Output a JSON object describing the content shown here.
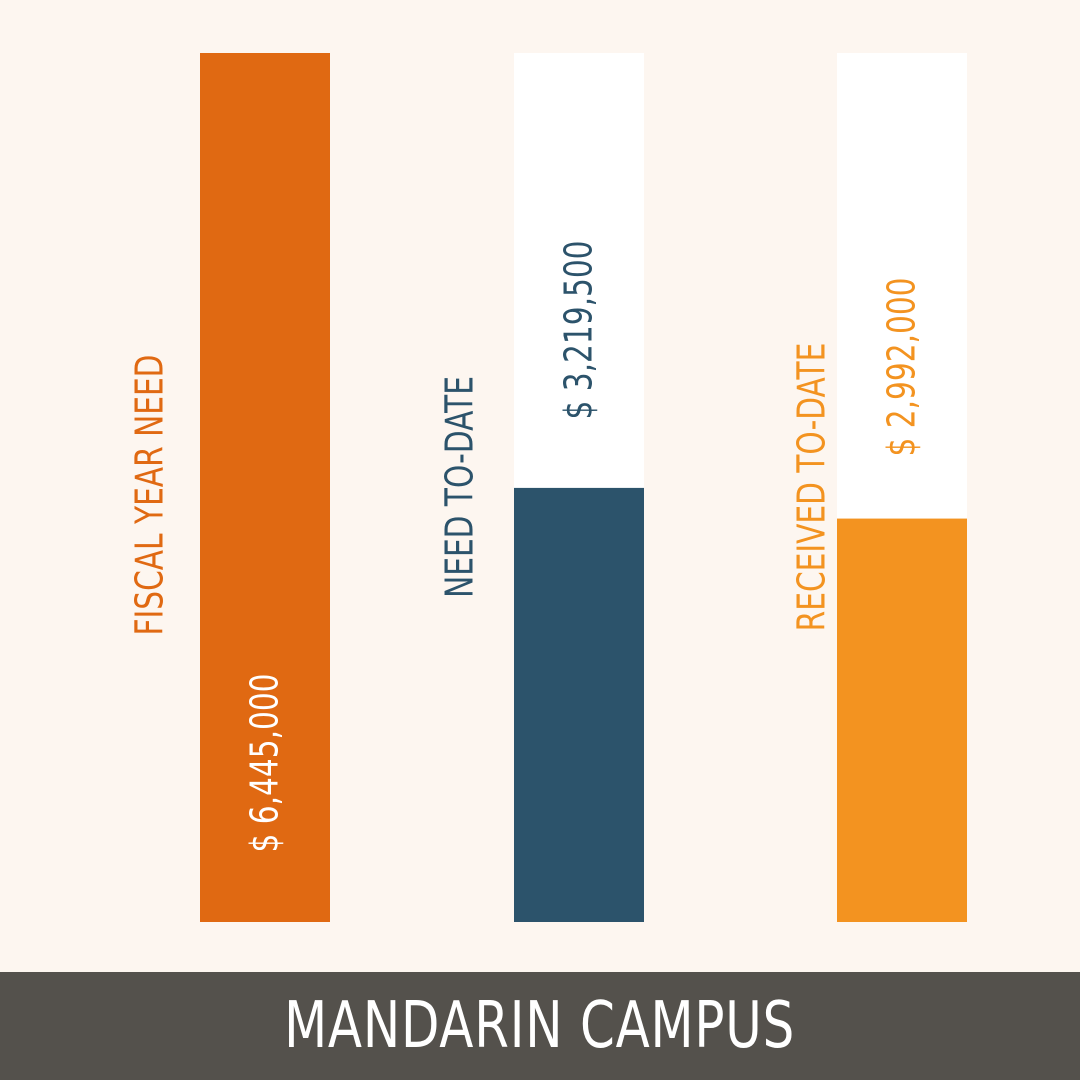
{
  "chart_data": {
    "type": "bar",
    "orientation": "vertical",
    "ylim": [
      0,
      6445000
    ],
    "grid": false,
    "legend": "none",
    "series": [
      {
        "category": "FISCAL YEAR NEED",
        "value": 6445000,
        "value_label": "$ 6,445,000",
        "color": "#e06912",
        "label_color": "#e06912",
        "value_label_color": "#ffffff"
      },
      {
        "category": "NEED TO-DATE",
        "value": 3219500,
        "value_label": "$ 3,219,500",
        "color": "#2c536b",
        "label_color": "#2c536b",
        "value_label_color": "#2c536b"
      },
      {
        "category": "RECEIVED TO-DATE",
        "value": 2992000,
        "value_label": "$ 2,992,000",
        "color": "#f39320",
        "label_color": "#f39320",
        "value_label_color": "#f39320"
      }
    ],
    "track_color": "#ffffff"
  },
  "footer": {
    "title": "MANDARIN CAMPUS",
    "background": "#54514c"
  }
}
